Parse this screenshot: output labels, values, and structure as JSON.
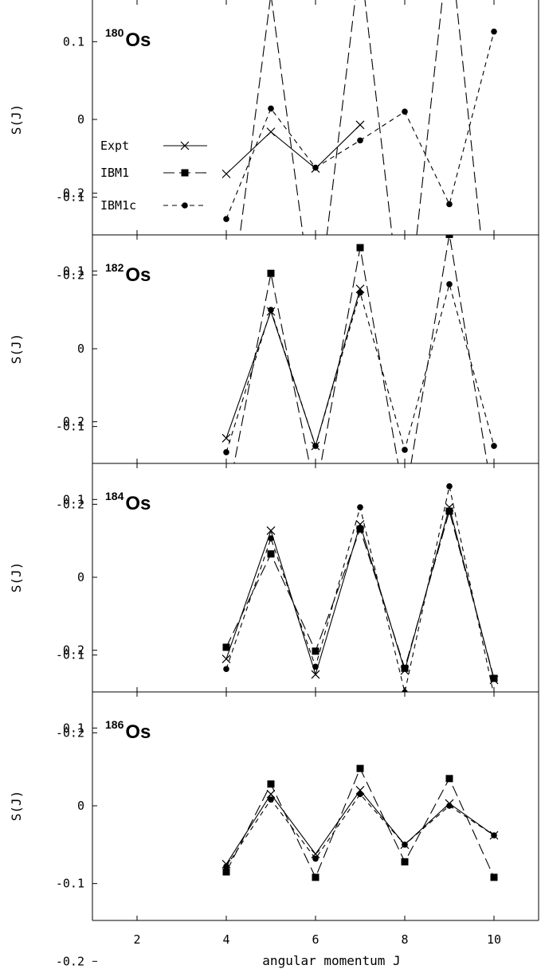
{
  "chart_data": {
    "type": "line",
    "xlabel": "angular momentum J",
    "ylabel": "S(J)",
    "xlim": [
      1,
      11
    ],
    "ylim": [
      -0.3,
      0.3
    ],
    "x_ticks": [
      2,
      4,
      6,
      8,
      10
    ],
    "y_ticks": [
      0.2,
      0.1,
      0,
      -0.1,
      -0.2
    ],
    "y_tick_labels": [
      "0.2",
      "0.1",
      "0",
      "-0.1",
      "-0.2"
    ],
    "legend": {
      "placement": "left, top panel",
      "entries": [
        {
          "name": "Expt",
          "marker": "cross",
          "dash": "solid"
        },
        {
          "name": "IBM1",
          "marker": "square",
          "dash": "long-dash"
        },
        {
          "name": "IBM1c",
          "marker": "circle",
          "dash": "short-dash"
        }
      ]
    },
    "panels": [
      {
        "mass": "180",
        "element": "Os",
        "series": [
          {
            "name": "Expt",
            "x": [
              4,
              5,
              6,
              7
            ],
            "y": [
              -0.07,
              -0.016,
              -0.063,
              -0.007
            ]
          },
          {
            "name": "IBM1",
            "x": [
              4,
              5,
              6,
              7,
              8,
              9,
              10
            ],
            "y": [
              -0.285,
              0.161,
              -0.27,
              0.207,
              -0.29,
              0.238,
              -0.31
            ]
          },
          {
            "name": "IBM1c",
            "x": [
              4,
              5,
              6,
              7,
              8,
              9,
              10
            ],
            "y": [
              -0.128,
              0.014,
              -0.062,
              -0.027,
              0.01,
              -0.109,
              0.113
            ]
          }
        ]
      },
      {
        "mass": "182",
        "element": "Os",
        "series": [
          {
            "name": "Expt",
            "x": [
              4,
              5,
              6,
              7
            ],
            "y": [
              -0.115,
              0.048,
              -0.125,
              0.077
            ]
          },
          {
            "name": "IBM1",
            "x": [
              4,
              5,
              6,
              7,
              8,
              9,
              10
            ],
            "y": [
              -0.2,
              0.097,
              -0.186,
              0.13,
              -0.196,
              0.147,
              -0.2
            ]
          },
          {
            "name": "IBM1c",
            "x": [
              4,
              5,
              6,
              7,
              8,
              9,
              10
            ],
            "y": [
              -0.133,
              0.05,
              -0.125,
              0.072,
              -0.13,
              0.083,
              -0.125
            ]
          }
        ]
      },
      {
        "mass": "184",
        "element": "Os",
        "series": [
          {
            "name": "Expt",
            "x": [
              4,
              5,
              6,
              7,
              8,
              9,
              10
            ],
            "y": [
              -0.105,
              0.06,
              -0.125,
              0.068,
              -0.12,
              0.09,
              -0.132
            ]
          },
          {
            "name": "IBM1",
            "x": [
              4,
              5,
              6,
              7,
              8,
              9,
              10
            ],
            "y": [
              -0.09,
              0.03,
              -0.095,
              0.062,
              -0.117,
              0.085,
              -0.13
            ]
          },
          {
            "name": "IBM1c",
            "x": [
              4,
              5,
              6,
              7,
              8,
              9,
              10
            ],
            "y": [
              -0.118,
              0.05,
              -0.115,
              0.09,
              -0.148,
              0.117,
              -0.152
            ]
          }
        ]
      },
      {
        "mass": "186",
        "element": "Os",
        "series": [
          {
            "name": "Expt",
            "x": [
              4,
              5,
              6,
              7,
              8,
              9,
              10
            ],
            "y": [
              -0.075,
              0.015,
              -0.062,
              0.02,
              -0.05,
              0.003,
              -0.038
            ]
          },
          {
            "name": "IBM1",
            "x": [
              4,
              5,
              6,
              7,
              8,
              9,
              10
            ],
            "y": [
              -0.085,
              0.028,
              -0.092,
              0.048,
              -0.072,
              0.035,
              -0.092
            ]
          },
          {
            "name": "IBM1c",
            "x": [
              4,
              5,
              6,
              7,
              8,
              9,
              10
            ],
            "y": [
              -0.078,
              0.008,
              -0.068,
              0.015,
              -0.05,
              0.0,
              -0.038
            ]
          }
        ]
      }
    ]
  }
}
